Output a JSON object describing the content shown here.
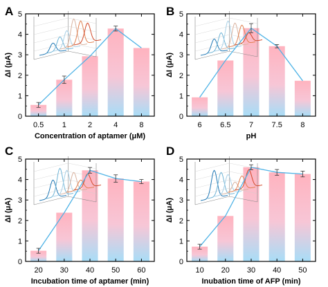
{
  "figure": {
    "colors": {
      "axis": "#000000",
      "line": "#4fb3e6",
      "bar_top": "#ffb3bf",
      "bar_bottom": "#a8ddf7",
      "error": "#333333",
      "inset_colors": [
        "#1f77b4",
        "#6fb4d6",
        "#a8d0e6",
        "#d9b3a0",
        "#e08050",
        "#d1492a"
      ]
    }
  },
  "chart_data": [
    {
      "panel": "A",
      "type": "bar",
      "categories": [
        "0.5",
        "1",
        "2",
        "4",
        "8"
      ],
      "values": [
        0.55,
        1.78,
        2.93,
        4.28,
        3.33
      ],
      "errors": [
        0.12,
        0.18,
        0.0,
        0.12,
        0.0
      ],
      "xlabel": "Concentration of aptamer (μM)",
      "ylabel": "ΔI (μA)",
      "ylim": [
        0,
        5
      ],
      "yticks": [
        "0",
        "1",
        "2",
        "3",
        "4",
        "5"
      ],
      "line_overlay": true,
      "inset": "3D waterfall of DPV curves"
    },
    {
      "panel": "B",
      "type": "bar",
      "categories": [
        "6",
        "6.5",
        "7",
        "7.5",
        "8"
      ],
      "values": [
        0.92,
        2.72,
        4.3,
        3.42,
        1.73
      ],
      "errors": [
        0.0,
        0.0,
        0.22,
        0.08,
        0.0
      ],
      "xlabel": "pH",
      "ylabel": "ΔI (μA)",
      "ylim": [
        0,
        5
      ],
      "yticks": [
        "0",
        "1",
        "2",
        "3",
        "4",
        "5"
      ],
      "line_overlay": true,
      "inset": "3D waterfall of DPV curves"
    },
    {
      "panel": "C",
      "type": "bar",
      "categories": [
        "20",
        "30",
        "40",
        "50",
        "60"
      ],
      "values": [
        0.52,
        2.38,
        4.45,
        4.05,
        3.9
      ],
      "errors": [
        0.12,
        0.0,
        0.14,
        0.18,
        0.1
      ],
      "xlabel": "Incubation time of aptamer (min)",
      "ylabel": "ΔI (μA)",
      "ylim": [
        0,
        5
      ],
      "yticks": [
        "0",
        "1",
        "2",
        "3",
        "4",
        "5"
      ],
      "line_overlay": true,
      "inset": "3D waterfall of DPV curves"
    },
    {
      "panel": "D",
      "type": "bar",
      "categories": [
        "10",
        "20",
        "30",
        "40",
        "50"
      ],
      "values": [
        0.72,
        2.22,
        4.6,
        4.35,
        4.27
      ],
      "errors": [
        0.12,
        0.0,
        0.12,
        0.14,
        0.14
      ],
      "xlabel": "Inubation time of AFP (min)",
      "ylabel": "ΔI (μA)",
      "ylim": [
        0,
        5
      ],
      "yticks": [
        "0",
        "1",
        "2",
        "3",
        "4",
        "5"
      ],
      "line_overlay": true,
      "inset": "3D waterfall of DPV curves"
    }
  ]
}
